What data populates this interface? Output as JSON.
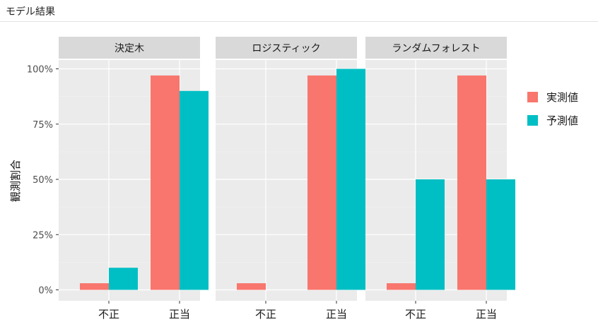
{
  "header": {
    "title": "モデル結果"
  },
  "chart_data": {
    "type": "bar",
    "ylabel": "観測割合",
    "ylim": [
      0,
      1.1
    ],
    "y_ticks": [
      {
        "value": 0,
        "label": "0%"
      },
      {
        "value": 0.25,
        "label": "25%"
      },
      {
        "value": 0.5,
        "label": "50%"
      },
      {
        "value": 0.75,
        "label": "75%"
      },
      {
        "value": 1.0,
        "label": "100%"
      }
    ],
    "categories": [
      "不正",
      "正当"
    ],
    "grid": true,
    "legend_position": "right",
    "series_meta": [
      {
        "name": "実測値",
        "color": "#F8766D"
      },
      {
        "name": "予測値",
        "color": "#00BFC4"
      }
    ],
    "facets": [
      {
        "title": "決定木",
        "series": [
          {
            "name": "実測値",
            "values": [
              0.03,
              0.97
            ]
          },
          {
            "name": "予測値",
            "values": [
              0.1,
              0.9
            ]
          }
        ]
      },
      {
        "title": "ロジスティック",
        "series": [
          {
            "name": "実測値",
            "values": [
              0.03,
              0.97
            ]
          },
          {
            "name": "予測値",
            "values": [
              0.0,
              1.0
            ]
          }
        ]
      },
      {
        "title": "ランダムフォレスト",
        "series": [
          {
            "name": "実測値",
            "values": [
              0.03,
              0.97
            ]
          },
          {
            "name": "予測値",
            "values": [
              0.5,
              0.5
            ]
          }
        ]
      }
    ]
  }
}
